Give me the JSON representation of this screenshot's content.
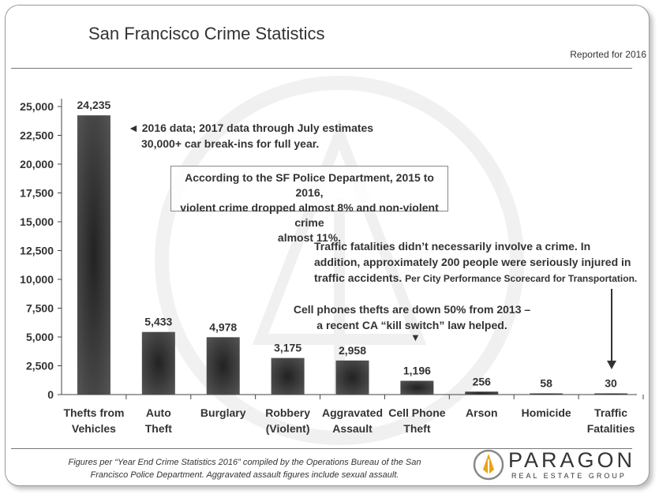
{
  "header": {
    "title": "San Francisco Crime Statistics",
    "reported": "Reported for 2016"
  },
  "annotations": {
    "thefts_note_line1": "◄ 2016 data; 2017 data through July estimates",
    "thefts_note_line2": "30,000+ car break-ins for full year.",
    "box_note_line1": "According to the SF Police Department, 2015 to 2016,",
    "box_note_line2": "violent crime dropped almost 8% and non-violent crime",
    "box_note_line3": "almost 11%.",
    "traffic_note_line1": "Traffic fatalities didn’t necessarily involve a crime. In",
    "traffic_note_line2": "addition, approximately 200 people were seriously injured in",
    "traffic_note_line3a": "traffic accidents.",
    "traffic_note_line3b": "Per City Performance Scorecard for Transportation.",
    "cell_note_line1": "Cell phones thefts are down 50% from 2013 –",
    "cell_note_line2": "a recent CA “kill switch” law helped.",
    "cell_arrow": "▼"
  },
  "footer": {
    "line1": "Figures per “Year End Crime Statistics 2016” compiled by the Operations Bureau of the San",
    "line2": "Francisco Police Department. Aggravated assault figures include sexual assault."
  },
  "logo": {
    "name": "PARAGON",
    "sub": "REAL ESTATE GROUP",
    "accent": "#e8a317"
  },
  "chart_data": {
    "type": "bar",
    "title": "San Francisco Crime Statistics",
    "categories": [
      [
        "Thefts from",
        "Vehicles"
      ],
      [
        "Auto",
        "Theft"
      ],
      [
        "Burglary"
      ],
      [
        "Robbery",
        "(Violent)"
      ],
      [
        "Aggravated",
        "Assault"
      ],
      [
        "Cell Phone",
        "Theft"
      ],
      [
        "Arson"
      ],
      [
        "Homicide"
      ],
      [
        "Traffic",
        "Fatalities"
      ]
    ],
    "values": [
      24235,
      5433,
      4978,
      3175,
      2958,
      1196,
      256,
      58,
      30
    ],
    "value_labels": [
      "24,235",
      "5,433",
      "4,978",
      "3,175",
      "2,958",
      "1,196",
      "256",
      "58",
      "30"
    ],
    "yticks": [
      0,
      2500,
      5000,
      7500,
      10000,
      12500,
      15000,
      17500,
      20000,
      22500,
      25000
    ],
    "ytick_labels": [
      "0",
      "2,500",
      "5,000",
      "7,500",
      "10,000",
      "12,500",
      "15,000",
      "17,500",
      "20,000",
      "22,500",
      "25,000"
    ],
    "ylim": [
      0,
      25000
    ],
    "bar_color": "#555555",
    "bar_center_color": "#222222"
  }
}
